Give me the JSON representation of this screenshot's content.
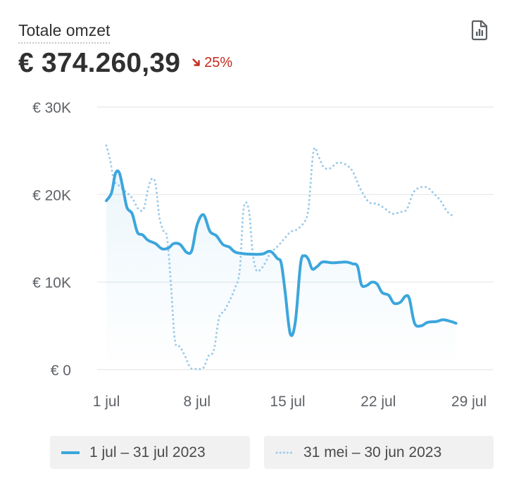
{
  "header": {
    "title": "Totale omzet",
    "total_value": "€ 374.260,39",
    "change_text": "25%",
    "change_direction": "down",
    "change_color": "#c32b1e",
    "report_icon": "report-file-icon"
  },
  "legend": {
    "items": [
      {
        "label": "1 jul – 31 jul 2023",
        "style": "solid",
        "color": "#3ca6dc"
      },
      {
        "label": "31 mei – 30 jun 2023",
        "style": "dotted",
        "color": "#9ccbea"
      }
    ]
  },
  "chart_data": {
    "type": "line",
    "x_tick_labels": [
      "1 jul",
      "8 jul",
      "15 jul",
      "22 jul",
      "29 jul"
    ],
    "x_tick_days": [
      1,
      8,
      15,
      22,
      29
    ],
    "xlim": [
      1,
      31
    ],
    "y_tick_labels": [
      "€ 0",
      "€ 10K",
      "€ 20K",
      "€ 30K"
    ],
    "y_tick_values": [
      0,
      10000,
      20000,
      30000
    ],
    "ylim": [
      0,
      30000
    ],
    "grid": "horizontal",
    "series": [
      {
        "name": "1 jul – 31 jul 2023",
        "style": "solid",
        "color": "#3ca6dc",
        "area_fill": true,
        "points": [
          [
            1.0,
            19300
          ],
          [
            1.4,
            20200
          ],
          [
            1.7,
            22400
          ],
          [
            2.0,
            22500
          ],
          [
            2.3,
            20600
          ],
          [
            2.6,
            18500
          ],
          [
            3.0,
            17800
          ],
          [
            3.4,
            15700
          ],
          [
            3.8,
            15400
          ],
          [
            4.2,
            14800
          ],
          [
            4.8,
            14400
          ],
          [
            5.3,
            13800
          ],
          [
            5.8,
            13900
          ],
          [
            6.2,
            14400
          ],
          [
            6.7,
            14300
          ],
          [
            7.2,
            13400
          ],
          [
            7.6,
            13600
          ],
          [
            8.0,
            16500
          ],
          [
            8.5,
            17700
          ],
          [
            9.0,
            15800
          ],
          [
            9.5,
            15300
          ],
          [
            10.0,
            14300
          ],
          [
            10.5,
            14000
          ],
          [
            11.0,
            13400
          ],
          [
            12.0,
            13200
          ],
          [
            13.0,
            13200
          ],
          [
            13.5,
            13500
          ],
          [
            13.8,
            13400
          ],
          [
            14.2,
            12700
          ],
          [
            14.5,
            12200
          ],
          [
            14.8,
            9000
          ],
          [
            15.2,
            4100
          ],
          [
            15.6,
            5500
          ],
          [
            16.0,
            12100
          ],
          [
            16.3,
            13000
          ],
          [
            16.6,
            12600
          ],
          [
            16.9,
            11500
          ],
          [
            17.3,
            11800
          ],
          [
            17.7,
            12300
          ],
          [
            18.5,
            12200
          ],
          [
            19.5,
            12300
          ],
          [
            20.0,
            12100
          ],
          [
            20.4,
            11800
          ],
          [
            20.7,
            9700
          ],
          [
            21.1,
            9600
          ],
          [
            21.5,
            10000
          ],
          [
            21.9,
            9800
          ],
          [
            22.3,
            8800
          ],
          [
            22.8,
            8500
          ],
          [
            23.2,
            7600
          ],
          [
            23.7,
            7700
          ],
          [
            24.1,
            8400
          ],
          [
            24.4,
            8100
          ],
          [
            24.8,
            5300
          ],
          [
            25.3,
            5000
          ],
          [
            25.8,
            5400
          ],
          [
            26.5,
            5500
          ],
          [
            27.0,
            5700
          ],
          [
            27.6,
            5500
          ],
          [
            28.0,
            5300
          ]
        ]
      },
      {
        "name": "31 mei – 30 jun 2023",
        "style": "dotted",
        "color": "#9ccbea",
        "area_fill": false,
        "points": [
          [
            1.0,
            25600
          ],
          [
            1.3,
            23900
          ],
          [
            1.6,
            21600
          ],
          [
            2.0,
            21000
          ],
          [
            2.5,
            20300
          ],
          [
            3.0,
            19600
          ],
          [
            3.5,
            18300
          ],
          [
            3.9,
            18400
          ],
          [
            4.2,
            20500
          ],
          [
            4.5,
            21800
          ],
          [
            4.8,
            21200
          ],
          [
            5.1,
            17400
          ],
          [
            5.4,
            15900
          ],
          [
            5.7,
            15000
          ],
          [
            6.0,
            9500
          ],
          [
            6.3,
            3300
          ],
          [
            6.7,
            2600
          ],
          [
            7.1,
            1500
          ],
          [
            7.5,
            200
          ],
          [
            8.0,
            100
          ],
          [
            8.5,
            200
          ],
          [
            8.9,
            1600
          ],
          [
            9.3,
            2200
          ],
          [
            9.7,
            5900
          ],
          [
            10.1,
            6700
          ],
          [
            10.5,
            7800
          ],
          [
            10.9,
            9200
          ],
          [
            11.3,
            11300
          ],
          [
            11.6,
            18400
          ],
          [
            12.0,
            18300
          ],
          [
            12.3,
            13400
          ],
          [
            12.6,
            11300
          ],
          [
            13.0,
            11600
          ],
          [
            13.3,
            12300
          ],
          [
            13.7,
            13400
          ],
          [
            14.1,
            13900
          ],
          [
            14.6,
            14700
          ],
          [
            15.2,
            15700
          ],
          [
            15.7,
            16000
          ],
          [
            16.2,
            16700
          ],
          [
            16.6,
            18300
          ],
          [
            17.0,
            25000
          ],
          [
            17.4,
            24300
          ],
          [
            17.8,
            23100
          ],
          [
            18.3,
            23000
          ],
          [
            18.8,
            23600
          ],
          [
            19.4,
            23500
          ],
          [
            20.0,
            22700
          ],
          [
            20.5,
            21000
          ],
          [
            20.9,
            19900
          ],
          [
            21.3,
            19100
          ],
          [
            21.7,
            19000
          ],
          [
            22.1,
            18800
          ],
          [
            22.6,
            18300
          ],
          [
            23.1,
            17800
          ],
          [
            23.7,
            18000
          ],
          [
            24.2,
            18300
          ],
          [
            24.7,
            20200
          ],
          [
            25.2,
            20800
          ],
          [
            25.8,
            20800
          ],
          [
            26.3,
            20100
          ],
          [
            26.8,
            19300
          ],
          [
            27.3,
            18100
          ],
          [
            27.7,
            17600
          ]
        ]
      }
    ]
  }
}
